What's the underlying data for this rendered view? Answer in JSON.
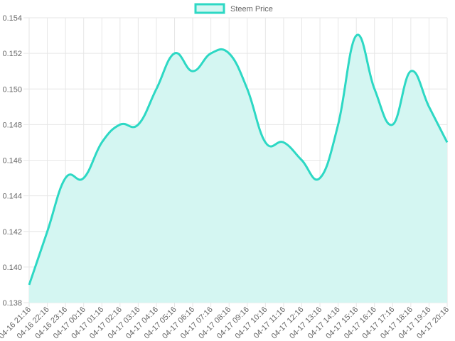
{
  "chart_data": {
    "type": "area",
    "title": "",
    "xlabel": "",
    "ylabel": "",
    "ylim": [
      0.138,
      0.154
    ],
    "y_ticks": [
      "0.138",
      "0.140",
      "0.142",
      "0.144",
      "0.146",
      "0.148",
      "0.150",
      "0.152",
      "0.154"
    ],
    "grid": true,
    "legend_position": "top-center",
    "categories": [
      "04-16 21:16",
      "04-16 22:16",
      "04-16 23:16",
      "04-17 00:16",
      "04-17 01:16",
      "04-17 02:16",
      "04-17 03:16",
      "04-17 04:16",
      "04-17 05:16",
      "04-17 06:16",
      "04-17 07:16",
      "04-17 08:16",
      "04-17 09:16",
      "04-17 10:16",
      "04-17 11:16",
      "04-17 12:16",
      "04-17 13:16",
      "04-17 14:16",
      "04-17 15:16",
      "04-17 16:16",
      "04-17 17:16",
      "04-17 18:16",
      "04-17 19:16",
      "04-17 20:16"
    ],
    "series": [
      {
        "name": "Steem Price",
        "line_color": "#2dd8c4",
        "fill_color": "#d4f6f2",
        "values": [
          0.139,
          0.142,
          0.145,
          0.145,
          0.147,
          0.148,
          0.148,
          0.15,
          0.152,
          0.151,
          0.152,
          0.152,
          0.15,
          0.147,
          0.147,
          0.146,
          0.145,
          0.148,
          0.153,
          0.15,
          0.148,
          0.151,
          0.149,
          0.147
        ]
      }
    ]
  }
}
